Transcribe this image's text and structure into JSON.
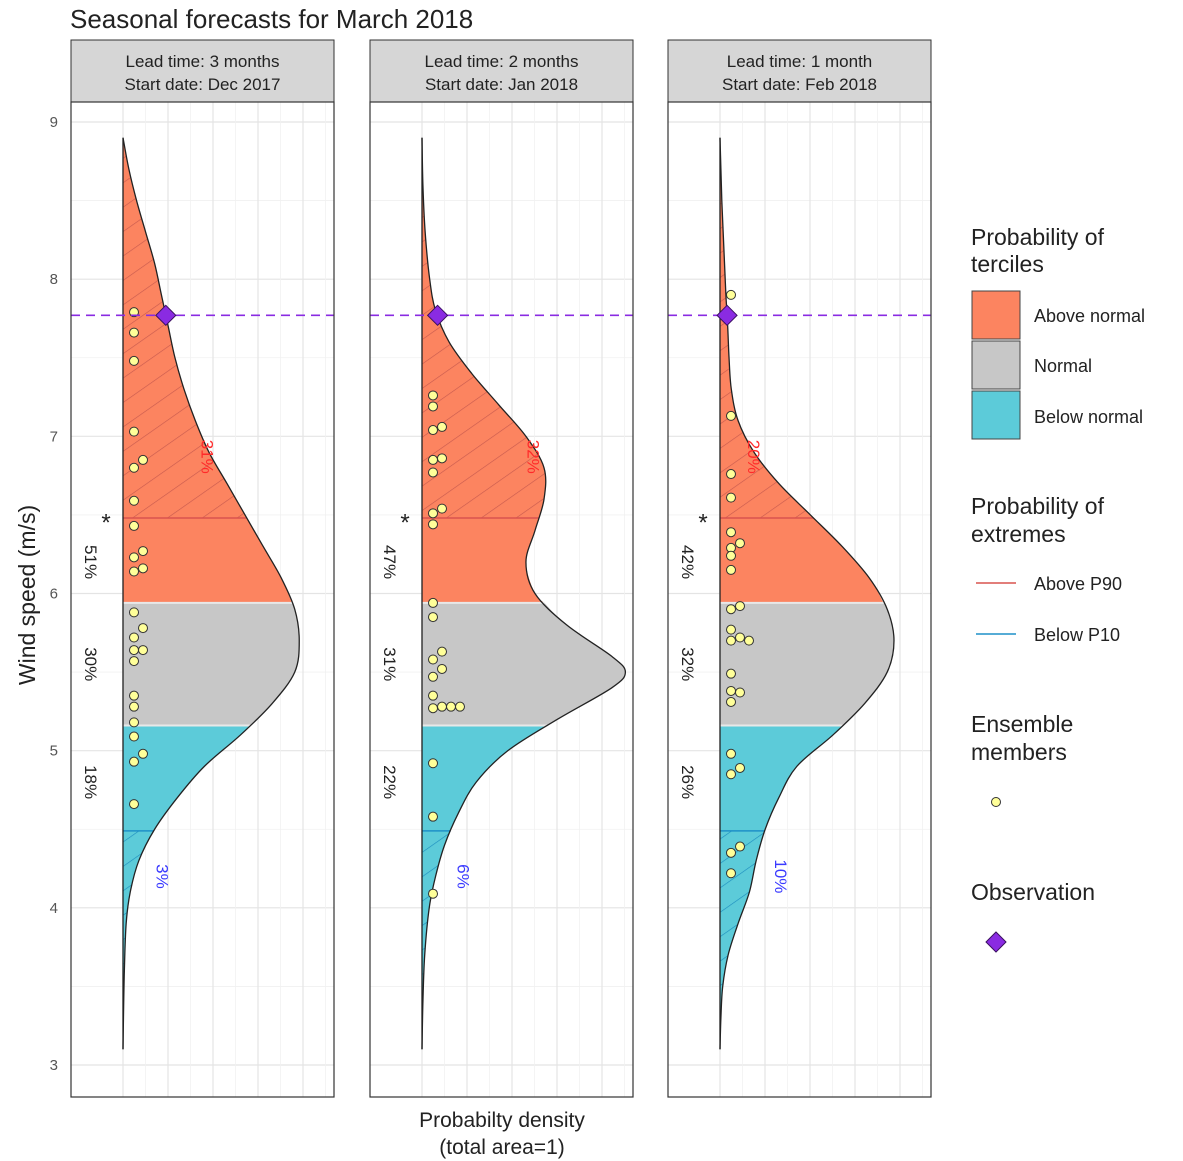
{
  "title": "Seasonal forecasts for March 2018",
  "xlabel_line1": "Probabilty density",
  "xlabel_line2": "(total area=1)",
  "ylabel": "Wind speed (m/s)",
  "colors": {
    "above": "#fc8460",
    "normal": "#c7c7c7",
    "below": "#5ccbd9",
    "above_hatch": "#c85a4e",
    "below_hatch": "#1c8dbf",
    "above_p90_line": "#d9534f",
    "below_p10_line": "#1e90c8",
    "observation": "#8a2be2",
    "member_fill": "#ffff99",
    "extreme_above_text": "#ff2a2a",
    "extreme_below_text": "#3a3aff",
    "tercile_split": "#e8e8e8",
    "strip_bg": "#d6d6d6"
  },
  "legend": {
    "terciles_title_1": "Probability of",
    "terciles_title_2": "terciles",
    "above": "Above normal",
    "normal": "Normal",
    "below": "Below normal",
    "extremes_title_1": "Probability of",
    "extremes_title_2": "extremes",
    "above_p90": "Above P90",
    "below_p10": "Below P10",
    "members_title_1": "Ensemble",
    "members_title_2": "members",
    "observation_title": "Observation"
  },
  "chart_data": {
    "type": "area",
    "orientation": "horizontal density (y = wind speed)",
    "ylim": [
      3,
      9
    ],
    "y_ticks": [
      "3",
      "4",
      "5",
      "6",
      "7",
      "8",
      "9"
    ],
    "observation": 7.77,
    "tercile_bounds": {
      "lower": 5.16,
      "upper": 5.94
    },
    "extreme_bounds": {
      "p10": 4.49,
      "p90": 6.48
    },
    "panels": [
      {
        "strip_line1": "Lead time: 3 months",
        "strip_line2": "Start date: Dec 2017",
        "above_pct": "51%",
        "normal_pct": "30%",
        "below_pct": "18%",
        "p90_pct": "31%",
        "p10_pct": "3%",
        "star": "*",
        "density_max": 0.52,
        "density": [
          [
            3.1,
            0
          ],
          [
            3.3,
            0.001
          ],
          [
            3.6,
            0.003
          ],
          [
            3.9,
            0.007
          ],
          [
            4.1,
            0.016
          ],
          [
            4.3,
            0.035
          ],
          [
            4.5,
            0.07
          ],
          [
            4.7,
            0.12
          ],
          [
            4.9,
            0.18
          ],
          [
            5.1,
            0.26
          ],
          [
            5.3,
            0.33
          ],
          [
            5.5,
            0.38
          ],
          [
            5.7,
            0.39
          ],
          [
            5.9,
            0.38
          ],
          [
            6.1,
            0.35
          ],
          [
            6.3,
            0.31
          ],
          [
            6.5,
            0.27
          ],
          [
            6.7,
            0.23
          ],
          [
            6.9,
            0.19
          ],
          [
            7.1,
            0.16
          ],
          [
            7.3,
            0.135
          ],
          [
            7.5,
            0.115
          ],
          [
            7.7,
            0.1
          ],
          [
            7.9,
            0.085
          ],
          [
            8.1,
            0.07
          ],
          [
            8.3,
            0.05
          ],
          [
            8.5,
            0.03
          ],
          [
            8.7,
            0.013
          ],
          [
            8.9,
            0
          ]
        ],
        "members": [
          [
            7.79,
            0
          ],
          [
            7.66,
            0
          ],
          [
            7.48,
            0
          ],
          [
            7.03,
            0
          ],
          [
            6.85,
            1
          ],
          [
            6.8,
            0
          ],
          [
            6.59,
            0
          ],
          [
            6.43,
            0
          ],
          [
            6.27,
            1
          ],
          [
            6.23,
            0
          ],
          [
            6.16,
            1
          ],
          [
            6.14,
            0
          ],
          [
            5.88,
            0
          ],
          [
            5.78,
            1
          ],
          [
            5.72,
            0
          ],
          [
            5.64,
            1
          ],
          [
            5.64,
            0
          ],
          [
            5.57,
            0
          ],
          [
            5.35,
            0
          ],
          [
            5.28,
            0
          ],
          [
            5.18,
            0
          ],
          [
            5.09,
            0
          ],
          [
            4.98,
            1
          ],
          [
            4.93,
            0
          ],
          [
            4.66,
            0
          ]
        ]
      },
      {
        "strip_line1": "Lead time: 2 months",
        "strip_line2": "Start date: Jan 2018",
        "above_pct": "47%",
        "normal_pct": "31%",
        "below_pct": "22%",
        "p90_pct": "32%",
        "p10_pct": "6%",
        "star": "*",
        "density_max": 0.52,
        "density": [
          [
            3.1,
            0
          ],
          [
            3.4,
            0.002
          ],
          [
            3.7,
            0.006
          ],
          [
            4.0,
            0.016
          ],
          [
            4.2,
            0.03
          ],
          [
            4.4,
            0.05
          ],
          [
            4.6,
            0.08
          ],
          [
            4.8,
            0.12
          ],
          [
            5.0,
            0.19
          ],
          [
            5.2,
            0.3
          ],
          [
            5.4,
            0.42
          ],
          [
            5.5,
            0.45
          ],
          [
            5.6,
            0.42
          ],
          [
            5.8,
            0.32
          ],
          [
            6.0,
            0.25
          ],
          [
            6.2,
            0.23
          ],
          [
            6.4,
            0.25
          ],
          [
            6.6,
            0.27
          ],
          [
            6.8,
            0.27
          ],
          [
            7.0,
            0.23
          ],
          [
            7.2,
            0.17
          ],
          [
            7.4,
            0.11
          ],
          [
            7.6,
            0.06
          ],
          [
            7.8,
            0.03
          ],
          [
            8.0,
            0.017
          ],
          [
            8.3,
            0.007
          ],
          [
            8.6,
            0.002
          ],
          [
            8.9,
            0
          ]
        ],
        "members": [
          [
            7.26,
            0
          ],
          [
            7.19,
            0
          ],
          [
            7.06,
            1
          ],
          [
            7.04,
            0
          ],
          [
            6.86,
            1
          ],
          [
            6.85,
            0
          ],
          [
            6.77,
            0
          ],
          [
            6.54,
            1
          ],
          [
            6.51,
            0
          ],
          [
            6.44,
            0
          ],
          [
            5.94,
            0
          ],
          [
            5.85,
            0
          ],
          [
            5.63,
            1
          ],
          [
            5.58,
            0
          ],
          [
            5.52,
            1
          ],
          [
            5.47,
            0
          ],
          [
            5.35,
            0
          ],
          [
            5.28,
            1
          ],
          [
            5.28,
            2
          ],
          [
            5.28,
            3
          ],
          [
            5.27,
            0
          ],
          [
            4.92,
            0
          ],
          [
            4.58,
            0
          ],
          [
            4.09,
            0
          ]
        ]
      },
      {
        "strip_line1": "Lead time: 1 month",
        "strip_line2": "Start date: Feb 2018",
        "above_pct": "42%",
        "normal_pct": "32%",
        "below_pct": "26%",
        "p90_pct": "20%",
        "p10_pct": "10%",
        "star": "*",
        "density_max": 0.52,
        "density": [
          [
            3.1,
            0
          ],
          [
            3.3,
            0.002
          ],
          [
            3.5,
            0.006
          ],
          [
            3.7,
            0.018
          ],
          [
            3.9,
            0.04
          ],
          [
            4.1,
            0.065
          ],
          [
            4.3,
            0.08
          ],
          [
            4.5,
            0.1
          ],
          [
            4.7,
            0.13
          ],
          [
            4.9,
            0.17
          ],
          [
            5.1,
            0.25
          ],
          [
            5.3,
            0.32
          ],
          [
            5.5,
            0.37
          ],
          [
            5.7,
            0.385
          ],
          [
            5.9,
            0.37
          ],
          [
            6.1,
            0.33
          ],
          [
            6.3,
            0.27
          ],
          [
            6.5,
            0.2
          ],
          [
            6.7,
            0.13
          ],
          [
            6.9,
            0.075
          ],
          [
            7.1,
            0.04
          ],
          [
            7.3,
            0.025
          ],
          [
            7.5,
            0.02
          ],
          [
            7.7,
            0.017
          ],
          [
            7.9,
            0.013
          ],
          [
            8.1,
            0.01
          ],
          [
            8.3,
            0.007
          ],
          [
            8.5,
            0.004
          ],
          [
            8.7,
            0.002
          ],
          [
            8.9,
            0
          ]
        ],
        "members": [
          [
            7.9,
            0
          ],
          [
            7.13,
            0
          ],
          [
            6.76,
            0
          ],
          [
            6.61,
            0
          ],
          [
            6.39,
            0
          ],
          [
            6.32,
            1
          ],
          [
            6.29,
            0
          ],
          [
            6.24,
            0
          ],
          [
            6.15,
            0
          ],
          [
            5.92,
            1
          ],
          [
            5.9,
            0
          ],
          [
            5.77,
            0
          ],
          [
            5.72,
            1
          ],
          [
            5.7,
            2
          ],
          [
            5.7,
            0
          ],
          [
            5.49,
            0
          ],
          [
            5.38,
            0
          ],
          [
            5.37,
            1
          ],
          [
            5.31,
            0
          ],
          [
            4.98,
            0
          ],
          [
            4.89,
            1
          ],
          [
            4.85,
            0
          ],
          [
            4.39,
            1
          ],
          [
            4.35,
            0
          ],
          [
            4.22,
            0
          ]
        ]
      }
    ]
  }
}
